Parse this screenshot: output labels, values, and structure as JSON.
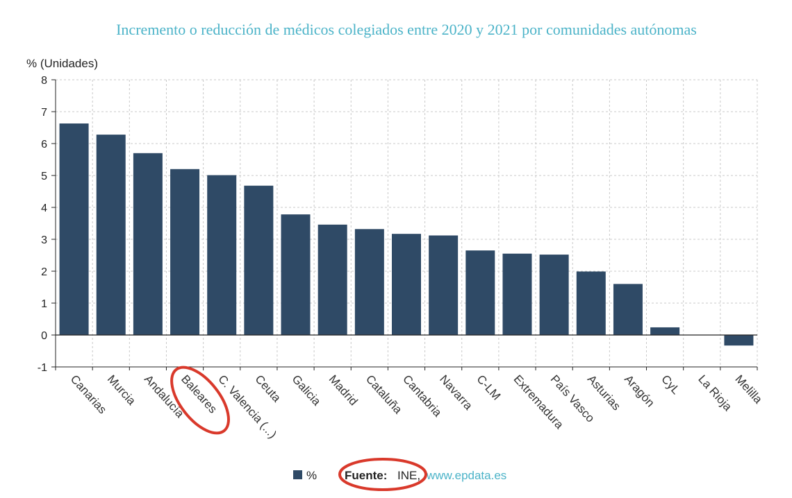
{
  "chart_data": {
    "type": "bar",
    "title": "Incremento o reducción de médicos colegiados entre 2020 y 2021 por comunidades autónomas",
    "ylabel": "% (Unidades)",
    "xlabel": "",
    "ylim": [
      -1,
      8
    ],
    "yticks": [
      -1,
      0,
      1,
      2,
      3,
      4,
      5,
      6,
      7,
      8
    ],
    "grid": true,
    "legend_position": "bottom",
    "categories": [
      "Canarias",
      "Murcia",
      "Andalucía",
      "Baleares",
      "C. Valencia (...)",
      "Ceuta",
      "Galicia",
      "Madrid",
      "Cataluña",
      "Cantabria",
      "Navarra",
      "C-LM",
      "Extremadura",
      "País Vasco",
      "Asturias",
      "Aragón",
      "CyL",
      "La Rioja",
      "Melilla"
    ],
    "series": [
      {
        "name": "%",
        "color": "#2f4a66",
        "values": [
          6.63,
          6.28,
          5.7,
          5.2,
          5.01,
          4.68,
          3.78,
          3.46,
          3.32,
          3.17,
          3.12,
          2.65,
          2.55,
          2.52,
          1.99,
          1.6,
          0.24,
          0.0,
          -0.33
        ]
      }
    ],
    "annotations": {
      "highlighted_category": "Baleares",
      "highlight_color": "#d9392b"
    }
  },
  "footer": {
    "source_label": "Fuente:",
    "source_text": "INE,",
    "source_link": "www.epdata.es",
    "highlight_color": "#d9392b"
  },
  "colors": {
    "title": "#4bb3c8",
    "bar": "#2f4a66",
    "grid": "#c8c8c8",
    "axis": "#222222"
  }
}
